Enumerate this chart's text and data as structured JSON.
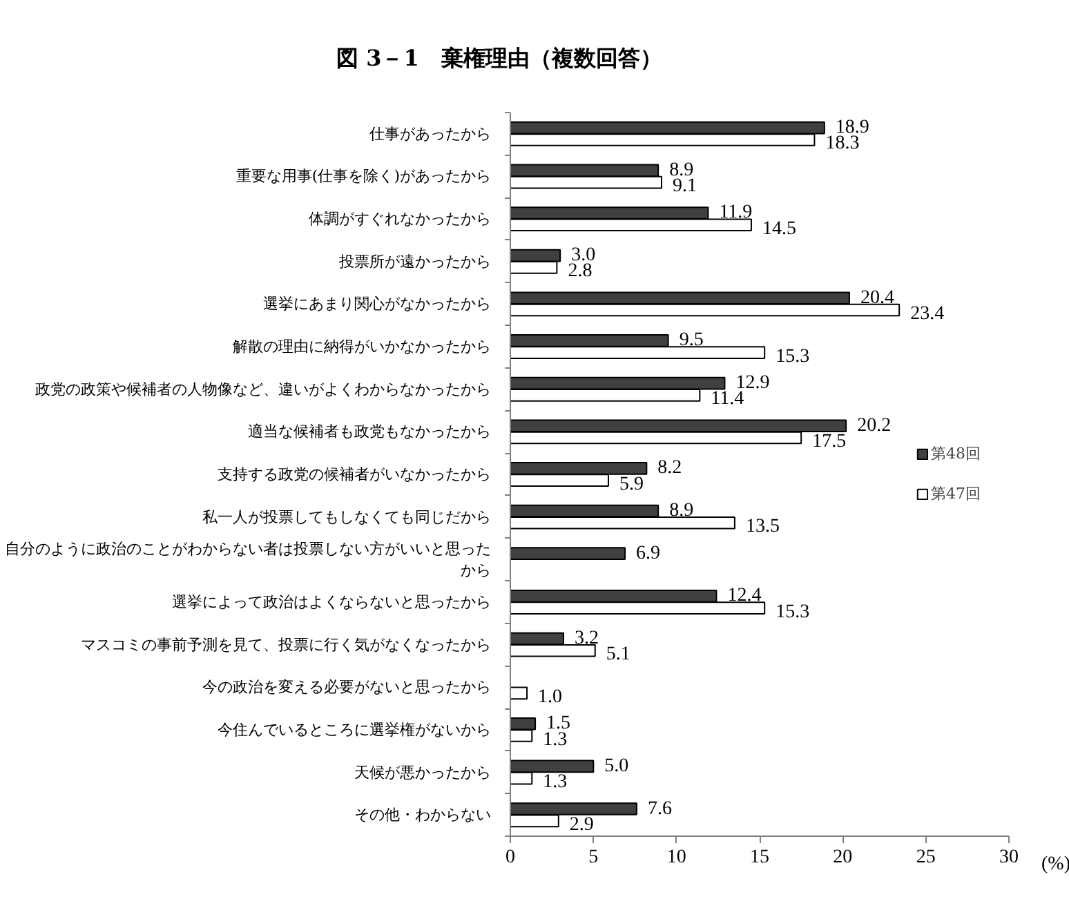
{
  "chart_data": {
    "type": "bar",
    "orientation": "horizontal",
    "title": "図 3－1　棄権理由（複数回答）",
    "xlabel": "(%)",
    "categories": [
      "仕事があったから",
      "重要な用事(仕事を除く)があったから",
      "体調がすぐれなかったから",
      "投票所が遠かったから",
      "選挙にあまり関心がなかったから",
      "解散の理由に納得がいかなかったから",
      "政党の政策や候補者の人物像など、違いがよくわからなかったから",
      "適当な候補者も政党もなかったから",
      "支持する政党の候補者がいなかったから",
      "私一人が投票してもしなくても同じだから",
      "自分のように政治のことがわからない者は投票しない方がいいと思ったから",
      "選挙によって政治はよくならないと思ったから",
      "マスコミの事前予測を見て、投票に行く気がなくなったから",
      "今の政治を変える必要がないと思ったから",
      "今住んでいるところに選挙権がないから",
      "天候が悪かったから",
      "その他・わからない"
    ],
    "series": [
      {
        "name": "第48回",
        "color": "#404040",
        "values": [
          18.9,
          8.9,
          11.9,
          3.0,
          20.4,
          9.5,
          12.9,
          20.2,
          8.2,
          8.9,
          6.9,
          12.4,
          3.2,
          null,
          1.5,
          5.0,
          7.6
        ],
        "value_labels": [
          "18.9",
          "8.9",
          "11.9",
          "3.0",
          "20.4",
          "9.5",
          "12.9",
          "20.2",
          "8.2",
          "8.9",
          "6.9",
          "12.4",
          "3.2",
          null,
          "1.5",
          "5.0",
          "7.6"
        ]
      },
      {
        "name": "第47回",
        "color": "#ffffff",
        "values": [
          18.3,
          9.1,
          14.5,
          2.8,
          23.4,
          15.3,
          11.4,
          17.5,
          5.9,
          13.5,
          null,
          15.3,
          5.1,
          1.0,
          1.3,
          1.3,
          2.9
        ],
        "value_labels": [
          "18.3",
          "9.1",
          "14.5",
          "2.8",
          "23.4",
          "15.3",
          "11.4",
          "17.5",
          "5.9",
          "13.5",
          null,
          "15.3",
          "5.1",
          "1.0",
          "1.3",
          "1.3",
          "2.9"
        ]
      }
    ],
    "xlim": [
      0,
      30
    ],
    "xticks": [
      0,
      5,
      10,
      15,
      20,
      25,
      30
    ],
    "legend": "right"
  }
}
